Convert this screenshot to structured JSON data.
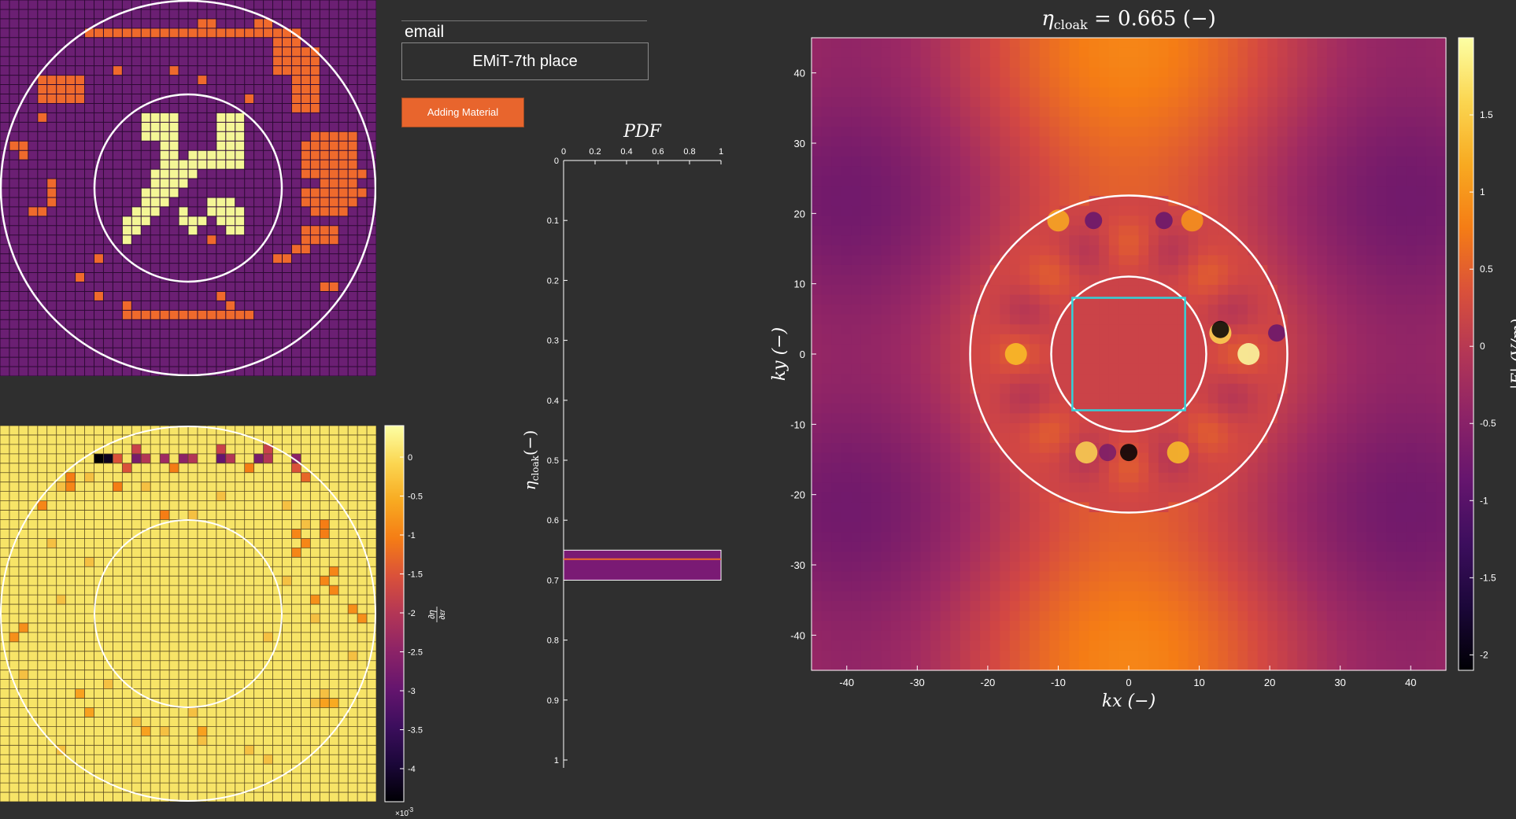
{
  "controls": {
    "email_label": "email",
    "team_value": "EMiT-7th place",
    "add_button_label": "Adding Material"
  },
  "design_grid": {
    "n": 40,
    "colors": {
      "background": "#6b1f73",
      "material": "#ef6a2c",
      "core": "#f4f696",
      "grid_line": "#2d0a34",
      "ring": "#ffffff"
    },
    "core_cells": [
      [
        12,
        15
      ],
      [
        12,
        16
      ],
      [
        12,
        17
      ],
      [
        12,
        18
      ],
      [
        12,
        23
      ],
      [
        12,
        24
      ],
      [
        12,
        25
      ],
      [
        13,
        15
      ],
      [
        13,
        16
      ],
      [
        13,
        17
      ],
      [
        13,
        18
      ],
      [
        13,
        23
      ],
      [
        13,
        24
      ],
      [
        13,
        25
      ],
      [
        14,
        15
      ],
      [
        14,
        16
      ],
      [
        14,
        17
      ],
      [
        14,
        18
      ],
      [
        14,
        23
      ],
      [
        14,
        24
      ],
      [
        14,
        25
      ],
      [
        15,
        17
      ],
      [
        15,
        18
      ],
      [
        15,
        23
      ],
      [
        15,
        24
      ],
      [
        15,
        25
      ],
      [
        16,
        17
      ],
      [
        16,
        18
      ],
      [
        16,
        20
      ],
      [
        16,
        21
      ],
      [
        16,
        22
      ],
      [
        16,
        23
      ],
      [
        16,
        24
      ],
      [
        16,
        25
      ],
      [
        17,
        17
      ],
      [
        17,
        18
      ],
      [
        17,
        19
      ],
      [
        17,
        20
      ],
      [
        17,
        21
      ],
      [
        17,
        22
      ],
      [
        17,
        23
      ],
      [
        17,
        24
      ],
      [
        17,
        25
      ],
      [
        18,
        16
      ],
      [
        18,
        17
      ],
      [
        18,
        18
      ],
      [
        18,
        19
      ],
      [
        18,
        20
      ],
      [
        19,
        16
      ],
      [
        19,
        17
      ],
      [
        19,
        18
      ],
      [
        19,
        19
      ],
      [
        20,
        15
      ],
      [
        20,
        16
      ],
      [
        20,
        17
      ],
      [
        20,
        18
      ],
      [
        21,
        15
      ],
      [
        21,
        16
      ],
      [
        21,
        17
      ],
      [
        21,
        22
      ],
      [
        21,
        23
      ],
      [
        21,
        24
      ],
      [
        22,
        14
      ],
      [
        22,
        15
      ],
      [
        22,
        16
      ],
      [
        22,
        22
      ],
      [
        22,
        23
      ],
      [
        22,
        24
      ],
      [
        22,
        25
      ],
      [
        23,
        13
      ],
      [
        23,
        14
      ],
      [
        23,
        15
      ],
      [
        23,
        23
      ],
      [
        23,
        24
      ],
      [
        23,
        25
      ],
      [
        24,
        13
      ],
      [
        24,
        14
      ],
      [
        24,
        24
      ],
      [
        24,
        25
      ],
      [
        25,
        13
      ],
      [
        24,
        20
      ],
      [
        23,
        19
      ],
      [
        23,
        20
      ],
      [
        23,
        21
      ],
      [
        22,
        19
      ]
    ],
    "material_cells": [
      [
        3,
        9
      ],
      [
        3,
        10
      ],
      [
        3,
        11
      ],
      [
        3,
        12
      ],
      [
        3,
        13
      ],
      [
        3,
        14
      ],
      [
        3,
        15
      ],
      [
        3,
        16
      ],
      [
        3,
        17
      ],
      [
        3,
        18
      ],
      [
        3,
        19
      ],
      [
        3,
        20
      ],
      [
        3,
        21
      ],
      [
        3,
        22
      ],
      [
        3,
        23
      ],
      [
        3,
        24
      ],
      [
        3,
        25
      ],
      [
        3,
        26
      ],
      [
        3,
        27
      ],
      [
        3,
        28
      ],
      [
        3,
        29
      ],
      [
        3,
        30
      ],
      [
        3,
        31
      ],
      [
        2,
        21
      ],
      [
        2,
        22
      ],
      [
        2,
        27
      ],
      [
        2,
        28
      ],
      [
        4,
        29
      ],
      [
        4,
        30
      ],
      [
        4,
        31
      ],
      [
        5,
        29
      ],
      [
        5,
        30
      ],
      [
        5,
        31
      ],
      [
        6,
        29
      ],
      [
        6,
        30
      ],
      [
        6,
        31
      ],
      [
        7,
        29
      ],
      [
        7,
        30
      ],
      [
        7,
        31
      ],
      [
        7,
        32
      ],
      [
        7,
        33
      ],
      [
        8,
        31
      ],
      [
        8,
        32
      ],
      [
        8,
        33
      ],
      [
        9,
        31
      ],
      [
        9,
        32
      ],
      [
        9,
        33
      ],
      [
        10,
        31
      ],
      [
        10,
        32
      ],
      [
        10,
        33
      ],
      [
        11,
        31
      ],
      [
        11,
        32
      ],
      [
        11,
        33
      ],
      [
        5,
        32
      ],
      [
        5,
        33
      ],
      [
        6,
        32
      ],
      [
        6,
        33
      ],
      [
        8,
        4
      ],
      [
        8,
        5
      ],
      [
        8,
        6
      ],
      [
        8,
        7
      ],
      [
        8,
        8
      ],
      [
        9,
        4
      ],
      [
        9,
        5
      ],
      [
        9,
        6
      ],
      [
        9,
        7
      ],
      [
        9,
        8
      ],
      [
        10,
        4
      ],
      [
        10,
        5
      ],
      [
        10,
        6
      ],
      [
        10,
        7
      ],
      [
        10,
        8
      ],
      [
        7,
        12
      ],
      [
        7,
        18
      ],
      [
        8,
        21
      ],
      [
        10,
        26
      ],
      [
        12,
        4
      ],
      [
        14,
        33
      ],
      [
        14,
        34
      ],
      [
        14,
        35
      ],
      [
        14,
        36
      ],
      [
        14,
        37
      ],
      [
        15,
        32
      ],
      [
        15,
        33
      ],
      [
        15,
        34
      ],
      [
        15,
        35
      ],
      [
        15,
        36
      ],
      [
        15,
        37
      ],
      [
        16,
        32
      ],
      [
        16,
        33
      ],
      [
        16,
        34
      ],
      [
        16,
        35
      ],
      [
        16,
        36
      ],
      [
        16,
        37
      ],
      [
        17,
        32
      ],
      [
        17,
        33
      ],
      [
        17,
        34
      ],
      [
        17,
        35
      ],
      [
        17,
        36
      ],
      [
        17,
        37
      ],
      [
        18,
        32
      ],
      [
        18,
        33
      ],
      [
        18,
        34
      ],
      [
        18,
        35
      ],
      [
        18,
        36
      ],
      [
        18,
        37
      ],
      [
        18,
        38
      ],
      [
        19,
        34
      ],
      [
        19,
        35
      ],
      [
        19,
        36
      ],
      [
        19,
        37
      ],
      [
        20,
        32
      ],
      [
        20,
        33
      ],
      [
        20,
        34
      ],
      [
        20,
        35
      ],
      [
        20,
        36
      ],
      [
        20,
        37
      ],
      [
        20,
        38
      ],
      [
        21,
        32
      ],
      [
        21,
        33
      ],
      [
        21,
        34
      ],
      [
        21,
        35
      ],
      [
        21,
        36
      ],
      [
        21,
        37
      ],
      [
        22,
        33
      ],
      [
        22,
        34
      ],
      [
        22,
        35
      ],
      [
        22,
        36
      ],
      [
        15,
        1
      ],
      [
        15,
        2
      ],
      [
        16,
        2
      ],
      [
        19,
        5
      ],
      [
        20,
        5
      ],
      [
        21,
        5
      ],
      [
        22,
        3
      ],
      [
        22,
        4
      ],
      [
        24,
        32
      ],
      [
        24,
        33
      ],
      [
        24,
        34
      ],
      [
        24,
        35
      ],
      [
        25,
        32
      ],
      [
        25,
        33
      ],
      [
        25,
        34
      ],
      [
        25,
        35
      ],
      [
        26,
        31
      ],
      [
        26,
        32
      ],
      [
        29,
        8
      ],
      [
        30,
        35
      ],
      [
        30,
        34
      ],
      [
        31,
        10
      ],
      [
        31,
        23
      ],
      [
        32,
        24
      ],
      [
        32,
        13
      ],
      [
        33,
        13
      ],
      [
        33,
        14
      ],
      [
        33,
        15
      ],
      [
        33,
        16
      ],
      [
        33,
        17
      ],
      [
        33,
        18
      ],
      [
        33,
        19
      ],
      [
        33,
        20
      ],
      [
        33,
        21
      ],
      [
        33,
        22
      ],
      [
        33,
        23
      ],
      [
        33,
        24
      ],
      [
        33,
        25
      ],
      [
        33,
        26
      ],
      [
        27,
        10
      ],
      [
        25,
        22
      ],
      [
        27,
        29
      ],
      [
        27,
        30
      ]
    ]
  },
  "gradient_map": {
    "colorbar": {
      "ticks": [
        "0",
        "-0.5",
        "-1",
        "-1.5",
        "-2",
        "-2.5",
        "-3",
        "-3.5",
        "-4"
      ],
      "exponent": "×10",
      "exponent_power": "-3",
      "label_num": "∂η",
      "label_den": "∂εr"
    },
    "dark_cells": [
      [
        3,
        10,
        0.0
      ],
      [
        3,
        11,
        0.05
      ],
      [
        3,
        14,
        0.35
      ],
      [
        3,
        15,
        0.5
      ],
      [
        3,
        17,
        0.45
      ],
      [
        3,
        19,
        0.4
      ],
      [
        3,
        20,
        0.5
      ],
      [
        3,
        23,
        0.3
      ],
      [
        3,
        24,
        0.5
      ],
      [
        3,
        27,
        0.35
      ],
      [
        3,
        28,
        0.5
      ],
      [
        3,
        31,
        0.4
      ],
      [
        2,
        14,
        0.55
      ],
      [
        2,
        23,
        0.55
      ],
      [
        2,
        28,
        0.55
      ],
      [
        3,
        12,
        0.6
      ],
      [
        4,
        13,
        0.6
      ],
      [
        4,
        18,
        0.7
      ],
      [
        4,
        26,
        0.7
      ],
      [
        4,
        31,
        0.6
      ],
      [
        5,
        32,
        0.65
      ],
      [
        6,
        12,
        0.7
      ],
      [
        5,
        7,
        0.7
      ],
      [
        6,
        7,
        0.72
      ],
      [
        8,
        4,
        0.72
      ],
      [
        9,
        17,
        0.7
      ],
      [
        10,
        34,
        0.7
      ],
      [
        11,
        34,
        0.7
      ],
      [
        11,
        31,
        0.72
      ],
      [
        12,
        32,
        0.72
      ],
      [
        13,
        31,
        0.72
      ],
      [
        15,
        35,
        0.72
      ],
      [
        16,
        34,
        0.72
      ],
      [
        17,
        35,
        0.72
      ],
      [
        18,
        33,
        0.74
      ],
      [
        19,
        37,
        0.74
      ],
      [
        20,
        38,
        0.74
      ],
      [
        21,
        2,
        0.74
      ],
      [
        22,
        1,
        0.74
      ],
      [
        28,
        8,
        0.78
      ],
      [
        29,
        35,
        0.8
      ],
      [
        29,
        34,
        0.78
      ],
      [
        30,
        9,
        0.78
      ],
      [
        32,
        15,
        0.78
      ],
      [
        32,
        21,
        0.78
      ]
    ]
  },
  "pdf_chart": {
    "title": "PDF",
    "ylabel_main": "η",
    "ylabel_sub": "cloak",
    "ylabel_unit": "(−)",
    "x_ticks": [
      "0",
      "0.2",
      "0.4",
      "0.6",
      "0.8",
      "1"
    ],
    "y_ticks": [
      "0",
      "0.1",
      "0.2",
      "0.3",
      "0.4",
      "0.5",
      "0.6",
      "0.7",
      "0.8",
      "0.9",
      "1"
    ],
    "chart_data": {
      "type": "bar",
      "bin": [
        0.65,
        0.7
      ],
      "pdf": 1,
      "marker": 0.665,
      "xlim": [
        0,
        1
      ],
      "ylim": [
        0,
        1
      ]
    }
  },
  "field_plot": {
    "title_main": "η",
    "title_sub": "cloak",
    "title_tail": " = 0.665 (−)",
    "xlabel": "kx (−)",
    "ylabel": "ky (−)",
    "x_ticks": [
      "-40",
      "-30",
      "-20",
      "-10",
      "0",
      "10",
      "20",
      "30",
      "40"
    ],
    "y_ticks": [
      "40",
      "30",
      "20",
      "10",
      "0",
      "-10",
      "-20",
      "-30",
      "-40"
    ],
    "colorbar_ticks": [
      "1.5",
      "1",
      "0.5",
      "0",
      "-0.5",
      "-1",
      "-1.5",
      "-2"
    ],
    "colorbar_label": "|E| (V/m)",
    "chart_data": {
      "type": "heatmap",
      "xlim": [
        -45,
        45
      ],
      "ylim": [
        -45,
        45
      ],
      "clim": [
        -2.1,
        2.0
      ],
      "outer_radius": 22.5,
      "inner_radius": 11,
      "box_half": 8
    }
  }
}
